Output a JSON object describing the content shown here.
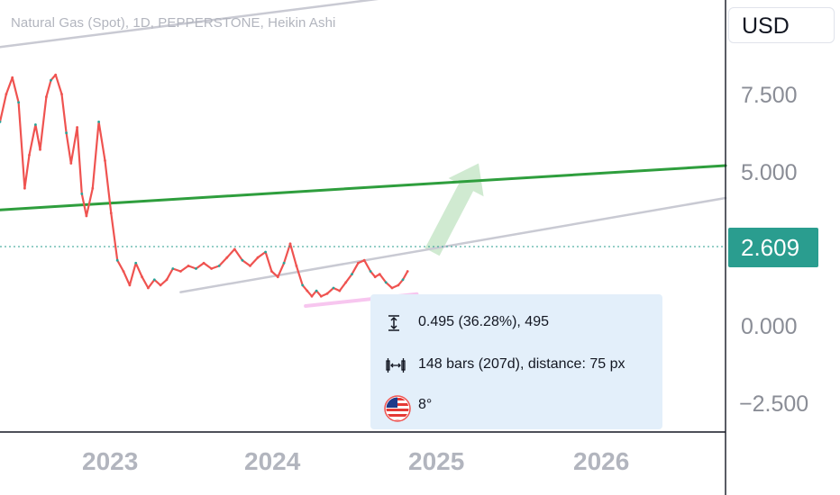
{
  "header": {
    "title": "Natural Gas (Spot), 1D, PEPPERSTONE, Heikin Ashi"
  },
  "currency_button": {
    "label": "USD"
  },
  "price_tag": {
    "value": "2.609",
    "color": "#2a9d8f"
  },
  "measure": {
    "price_change": "0.495 (36.28%), 495",
    "bars": "148 bars (207d), distance: 75 px",
    "angle": "8°",
    "icons": [
      "vertical-range-icon",
      "horizontal-range-icon",
      "us-flag-icon"
    ]
  },
  "chart_data": {
    "type": "line",
    "title": "Natural Gas (Spot), 1D, PEPPERSTONE, Heikin Ashi",
    "xlabel": "",
    "ylabel": "",
    "ylim": [
      -3.2,
      12.4
    ],
    "xlim": [
      2022.1,
      2026.8
    ],
    "y_ticks": [
      "7.500",
      "5.000",
      "2.609",
      "0.000",
      "−2.500"
    ],
    "y_tick_values": [
      7.5,
      5.0,
      2.609,
      0.0,
      -2.5
    ],
    "x_ticks": [
      "2023",
      "2024",
      "2025",
      "2026"
    ],
    "x_tick_values": [
      2023.0,
      2024.0,
      2025.0,
      2026.0
    ],
    "grid": false,
    "last_price": 2.609,
    "series": [
      {
        "color": "#ef5350",
        "x": [
          2022.1,
          2022.14,
          2022.18,
          2022.22,
          2022.26,
          2022.29,
          2022.33,
          2022.36,
          2022.4,
          2022.43,
          2022.46,
          2022.5,
          2022.53,
          2022.56,
          2022.6,
          2022.63,
          2022.66,
          2022.7,
          2022.74,
          2022.78,
          2022.82,
          2022.86,
          2022.9,
          2022.94,
          2022.98,
          2023.02,
          2023.06,
          2023.1,
          2023.14,
          2023.18,
          2023.22,
          2023.27,
          2023.32,
          2023.37,
          2023.42,
          2023.47,
          2023.52,
          2023.57,
          2023.62,
          2023.67,
          2023.72,
          2023.77,
          2023.82,
          2023.86,
          2023.9,
          2023.94,
          2023.98,
          2024.02,
          2024.06,
          2024.09,
          2024.12,
          2024.15,
          2024.18,
          2024.22,
          2024.26,
          2024.3,
          2024.34,
          2024.38,
          2024.42,
          2024.46,
          2024.5,
          2024.53,
          2024.56,
          2024.6,
          2024.64,
          2024.68,
          2024.71,
          2024.74
        ],
        "values": [
          8.0,
          9.0,
          9.6,
          8.7,
          5.6,
          6.8,
          7.9,
          7.0,
          8.9,
          9.5,
          9.7,
          9.0,
          7.6,
          6.5,
          7.8,
          5.4,
          4.6,
          5.6,
          8.0,
          6.6,
          4.7,
          3.0,
          2.6,
          2.1,
          2.9,
          2.4,
          2.0,
          2.3,
          2.1,
          2.3,
          2.7,
          2.6,
          2.8,
          2.7,
          2.9,
          2.7,
          2.8,
          3.1,
          3.4,
          3.0,
          2.8,
          3.1,
          3.3,
          2.6,
          2.4,
          2.9,
          3.6,
          2.8,
          2.1,
          1.9,
          1.7,
          1.9,
          1.7,
          1.8,
          2.0,
          1.9,
          2.2,
          2.5,
          2.9,
          3.0,
          2.6,
          2.4,
          2.5,
          2.2,
          2.0,
          2.1,
          2.3,
          2.6
        ]
      }
    ],
    "trendlines": [
      {
        "name": "upper-channel-line",
        "color": "#c9cad3",
        "x": [
          2022.1,
          2025.34
        ],
        "values": [
          10.7,
          13.0
        ]
      },
      {
        "name": "support-trendline",
        "color": "#2e9e3d",
        "x": [
          2022.1,
          2026.8
        ],
        "values": [
          4.82,
          6.42
        ]
      },
      {
        "name": "lower-channel-line",
        "color": "#c9cad3",
        "x": [
          2023.27,
          2026.8
        ],
        "values": [
          1.85,
          5.25
        ]
      },
      {
        "name": "bottom-highlight-line",
        "color": "#f7c6ef",
        "x": [
          2024.08,
          2024.8
        ],
        "values": [
          1.35,
          1.78
        ]
      }
    ],
    "arrow": {
      "color": "#c8e6c9",
      "from": [
        2024.9,
        3.3
      ],
      "to": [
        2025.2,
        6.5
      ]
    },
    "volume_hint": false
  }
}
